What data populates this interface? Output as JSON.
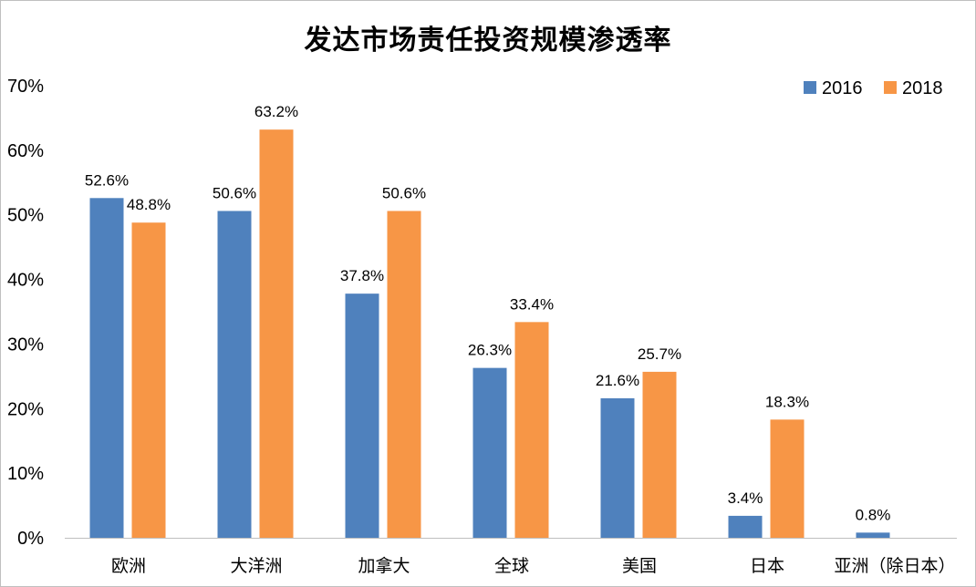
{
  "chart_data": {
    "type": "bar",
    "title": "发达市场责任投资规模渗透率",
    "categories": [
      "欧洲",
      "大洋洲",
      "加拿大",
      "全球",
      "美国",
      "日本",
      "亚洲（除日本）"
    ],
    "series": [
      {
        "name": "2016",
        "color": "#4f81bd",
        "values": [
          52.6,
          50.6,
          37.8,
          26.3,
          21.6,
          3.4,
          0.8
        ],
        "labels": [
          "52.6%",
          "50.6%",
          "37.8%",
          "26.3%",
          "21.6%",
          "3.4%",
          "0.8%"
        ]
      },
      {
        "name": "2018",
        "color": "#f79646",
        "values": [
          48.8,
          63.2,
          50.6,
          33.4,
          25.7,
          18.3,
          null
        ],
        "labels": [
          "48.8%",
          "63.2%",
          "50.6%",
          "33.4%",
          "25.7%",
          "18.3%",
          null
        ]
      }
    ],
    "ylim": [
      0,
      70
    ],
    "yticks": [
      "0%",
      "10%",
      "20%",
      "30%",
      "40%",
      "50%",
      "60%",
      "70%"
    ],
    "ytick_values": [
      0,
      10,
      20,
      30,
      40,
      50,
      60,
      70
    ],
    "grid": false,
    "legend": "top-right",
    "xlabel": "",
    "ylabel": ""
  }
}
